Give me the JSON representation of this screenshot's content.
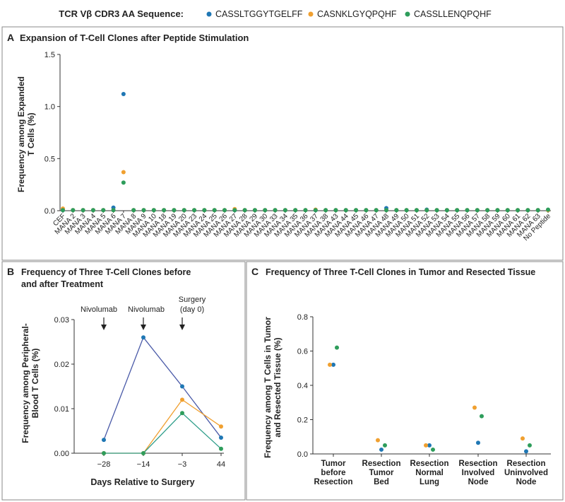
{
  "legend": {
    "title": "TCR Vβ CDR3 AA Sequence:",
    "items": [
      {
        "label": "CASSLTGGYTGELFF",
        "color": "#1f77b4"
      },
      {
        "label": "CASNKLGYQPQHF",
        "color": "#f0a030"
      },
      {
        "label": "CASSLLENQPQHF",
        "color": "#2e9d5b"
      }
    ]
  },
  "chart_data": [
    {
      "panel": "A",
      "type": "scatter",
      "title": "Expansion of T-Cell Clones after Peptide Stimulation",
      "ylabel_line1": "Frequency among Expanded",
      "ylabel_line2": "T Cells (%)",
      "ylim": [
        0,
        1.5
      ],
      "yticks": [
        "0.0",
        "0.5",
        "1.0",
        "1.5"
      ],
      "categories": [
        "CEF",
        "MANA 2",
        "MANA 3",
        "MANA 4",
        "MANA 5",
        "MANA 6",
        "MANA 7",
        "MANA 8",
        "MANA 9",
        "MANA 10",
        "MANA 18",
        "MANA 19",
        "MANA 20",
        "MANA 23",
        "MANA 24",
        "MANA 25",
        "MANA 26",
        "MANA 27",
        "MANA 28",
        "MANA 29",
        "MANA 30",
        "MANA 33",
        "MANA 34",
        "MANA 35",
        "MANA 36",
        "MANA 37",
        "MANA 38",
        "MANA 43",
        "MANA 44",
        "MANA 45",
        "MANA 46",
        "MANA 47",
        "MANA 48",
        "MANA 49",
        "MANA 50",
        "MANA 51",
        "MANA 52",
        "MANA 53",
        "MANA 54",
        "MANA 55",
        "MANA 56",
        "MANA 57",
        "MANA 58",
        "MANA 59",
        "MANA 60",
        "MANA 61",
        "MANA 62",
        "MANA 63",
        "No Peptide"
      ],
      "series": [
        {
          "name": "CASSLTGGYTGELFF",
          "values": [
            0.005,
            0.005,
            0.005,
            0.005,
            0.005,
            0.03,
            1.12,
            0.005,
            0.005,
            0.005,
            0.005,
            0.005,
            0.005,
            0.005,
            0.005,
            0.005,
            0.005,
            0.005,
            0.005,
            0.005,
            0.005,
            0.005,
            0.005,
            0.005,
            0.005,
            0.005,
            0.005,
            0.005,
            0.005,
            0.005,
            0.005,
            0.005,
            0.025,
            0.005,
            0.005,
            0.005,
            0.01,
            0.005,
            0.005,
            0.005,
            0.005,
            0.005,
            0.005,
            0.005,
            0.005,
            0.005,
            0.005,
            0.005,
            0.005
          ]
        },
        {
          "name": "CASNKLGYQPQHF",
          "values": [
            0.02,
            0.005,
            0.005,
            0.005,
            0.005,
            0.005,
            0.37,
            0.005,
            0.005,
            0.005,
            0.005,
            0.005,
            0.005,
            0.005,
            0.005,
            0.005,
            0.005,
            0.015,
            0.005,
            0.005,
            0.005,
            0.005,
            0.005,
            0.005,
            0.005,
            0.01,
            0.005,
            0.005,
            0.005,
            0.005,
            0.005,
            0.005,
            0.005,
            0.005,
            0.005,
            0.005,
            0.005,
            0.005,
            0.005,
            0.005,
            0.005,
            0.005,
            0.005,
            0.005,
            0.005,
            0.005,
            0.005,
            0.005,
            0.005
          ]
        },
        {
          "name": "CASSLLENQPQHF",
          "values": [
            0.005,
            0.005,
            0.005,
            0.005,
            0.005,
            0.005,
            0.27,
            0.005,
            0.005,
            0.005,
            0.005,
            0.005,
            0.005,
            0.005,
            0.005,
            0.005,
            0.005,
            0.005,
            0.005,
            0.005,
            0.005,
            0.005,
            0.005,
            0.005,
            0.005,
            0.005,
            0.005,
            0.005,
            0.005,
            0.005,
            0.005,
            0.005,
            0.005,
            0.005,
            0.005,
            0.005,
            0.005,
            0.005,
            0.005,
            0.005,
            0.005,
            0.005,
            0.005,
            0.005,
            0.005,
            0.005,
            0.005,
            0.005,
            0.01
          ]
        }
      ]
    },
    {
      "panel": "B",
      "type": "line",
      "title_line1": "Frequency of Three T-Cell Clones before",
      "title_line2": "and after Treatment",
      "xlabel": "Days Relative to Surgery",
      "ylabel_line1": "Frequency among Peripheral-",
      "ylabel_line2": "Blood T Cells (%)",
      "x": [
        "−28",
        "−14",
        "−3",
        "44"
      ],
      "ylim": [
        0,
        0.03
      ],
      "yticks": [
        "0.00",
        "0.01",
        "0.02",
        "0.03"
      ],
      "annotations": [
        {
          "text": "Nivolumab",
          "at": "−28"
        },
        {
          "text": "Nivolumab",
          "at": "−14"
        },
        {
          "text": "Surgery",
          "text2": "(day 0)",
          "at": "−3"
        }
      ],
      "series": [
        {
          "name": "CASSLTGGYTGELFF",
          "values": [
            0.003,
            0.026,
            0.015,
            0.0035
          ],
          "line_color": "#4a5aa8"
        },
        {
          "name": "CASNKLGYQPQHF",
          "values": [
            0.0,
            0.0,
            0.012,
            0.006
          ],
          "line_color": "#f0a030"
        },
        {
          "name": "CASSLLENQPQHF",
          "values": [
            0.0,
            0.0,
            0.009,
            0.001
          ],
          "line_color": "#2e9d8a"
        }
      ]
    },
    {
      "panel": "C",
      "type": "scatter",
      "title": "Frequency of Three T-Cell Clones in Tumor and Resected Tissue",
      "ylabel_line1": "Frequency among T Cells in Tumor",
      "ylabel_line2": "and Resected Tissue (%)",
      "ylim": [
        0,
        0.8
      ],
      "yticks": [
        "0.0",
        "0.2",
        "0.4",
        "0.6",
        "0.8"
      ],
      "categories": [
        [
          "Tumor",
          "before",
          "Resection"
        ],
        [
          "Resection",
          "Tumor",
          "Bed"
        ],
        [
          "Resection",
          "Normal",
          "Lung"
        ],
        [
          "Resection",
          "Involved",
          "Node"
        ],
        [
          "Resection",
          "Uninvolved",
          "Node"
        ]
      ],
      "series": [
        {
          "name": "CASSLTGGYTGELFF",
          "values": [
            0.52,
            0.025,
            0.05,
            0.065,
            0.015
          ],
          "offset": 0
        },
        {
          "name": "CASNKLGYQPQHF",
          "values": [
            0.52,
            0.08,
            0.05,
            0.27,
            0.09
          ],
          "offset": -1
        },
        {
          "name": "CASSLLENQPQHF",
          "values": [
            0.62,
            0.05,
            0.025,
            0.22,
            0.05
          ],
          "offset": 1
        }
      ]
    }
  ]
}
